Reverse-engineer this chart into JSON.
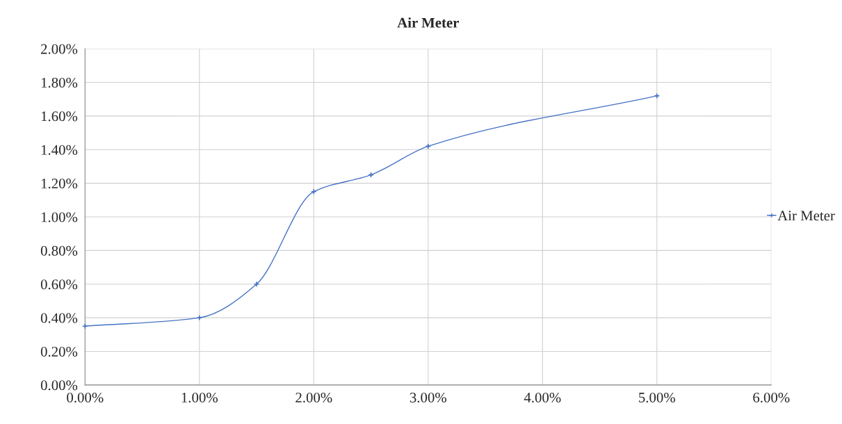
{
  "chart_data": {
    "type": "line",
    "title": "Air Meter",
    "x": [
      0,
      1,
      1.5,
      2,
      2.5,
      3,
      5
    ],
    "series": [
      {
        "name": "Air Meter",
        "color": "#4472c4",
        "values": [
          0.35,
          0.4,
          0.6,
          1.15,
          1.25,
          1.42,
          1.72
        ]
      }
    ],
    "xlim": [
      0,
      6
    ],
    "xticks": [
      {
        "value": 0,
        "label": "0.00%"
      },
      {
        "value": 1,
        "label": "1.00%"
      },
      {
        "value": 2,
        "label": "2.00%"
      },
      {
        "value": 3,
        "label": "3.00%"
      },
      {
        "value": 4,
        "label": "4.00%"
      },
      {
        "value": 5,
        "label": "5.00%"
      },
      {
        "value": 6,
        "label": "6.00%"
      }
    ],
    "ylim": [
      0,
      2
    ],
    "yticks": [
      {
        "value": 0,
        "label": "0.00%"
      },
      {
        "value": 0.2,
        "label": "0.20%"
      },
      {
        "value": 0.4,
        "label": "0.40%"
      },
      {
        "value": 0.6,
        "label": "0.60%"
      },
      {
        "value": 0.8,
        "label": "0.80%"
      },
      {
        "value": 1.0,
        "label": "1.00%"
      },
      {
        "value": 1.2,
        "label": "1.20%"
      },
      {
        "value": 1.4,
        "label": "1.40%"
      },
      {
        "value": 1.6,
        "label": "1.60%"
      },
      {
        "value": 1.8,
        "label": "1.80%"
      },
      {
        "value": 2.0,
        "label": "2.00%"
      }
    ],
    "grid": true,
    "legend": "right",
    "marker": "cross",
    "line_style": "solid"
  }
}
